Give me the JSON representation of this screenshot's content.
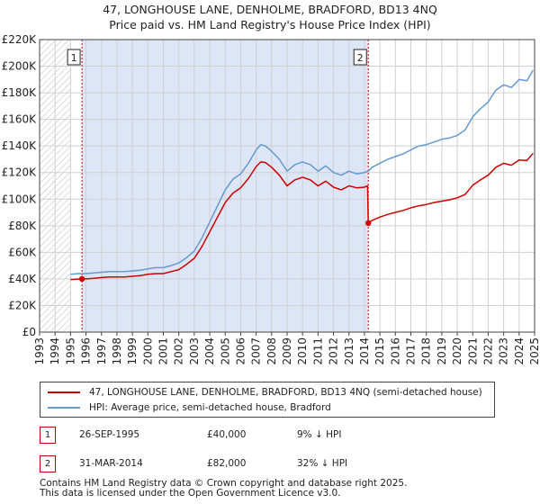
{
  "title_line1": "47, LONGHOUSE LANE, DENHOLME, BRADFORD, BD13 4NQ",
  "title_line2": "Price paid vs. HM Land Registry's House Price Index (HPI)",
  "legend": {
    "property_label": "47, LONGHOUSE LANE, DENHOLME, BRADFORD, BD13 4NQ (semi-detached house)",
    "hpi_label": "HPI: Average price, semi-detached house, Bradford"
  },
  "colors": {
    "property": "#cc0000",
    "hpi": "#6699cc",
    "shade": "#dde6f6",
    "hatch": "#bbbbbb",
    "grid": "#d0d0d0",
    "vline": "#cc0000"
  },
  "sales": [
    {
      "badge": "1",
      "date": "26-SEP-1995",
      "price": "£40,000",
      "hpi_delta": "9% ↓ HPI",
      "year": 1995.74,
      "value": 40000
    },
    {
      "badge": "2",
      "date": "31-MAR-2014",
      "price": "£82,000",
      "hpi_delta": "32% ↓ HPI",
      "year": 2014.25,
      "value": 82000
    }
  ],
  "footer_line1": "Contains HM Land Registry data © Crown copyright and database right 2025.",
  "footer_line2": "This data is licensed under the Open Government Licence v3.0.",
  "chart_data": {
    "type": "line",
    "title": "47, LONGHOUSE LANE, DENHOLME, BRADFORD, BD13 4NQ — Price paid vs. HM Land Registry's House Price Index (HPI)",
    "xlabel": "",
    "ylabel": "",
    "xlim": [
      1993,
      2025
    ],
    "ylim": [
      0,
      220000
    ],
    "y_ticks": [
      0,
      20000,
      40000,
      60000,
      80000,
      100000,
      120000,
      140000,
      160000,
      180000,
      200000,
      220000
    ],
    "y_tick_labels": [
      "£0",
      "£20K",
      "£40K",
      "£60K",
      "£80K",
      "£100K",
      "£120K",
      "£140K",
      "£160K",
      "£180K",
      "£200K",
      "£220K"
    ],
    "x_ticks": [
      1993,
      1994,
      1995,
      1996,
      1997,
      1998,
      1999,
      2000,
      2001,
      2002,
      2003,
      2004,
      2005,
      2006,
      2007,
      2008,
      2009,
      2010,
      2011,
      2012,
      2013,
      2014,
      2015,
      2016,
      2017,
      2018,
      2019,
      2020,
      2021,
      2022,
      2023,
      2024,
      2025
    ],
    "grid": true,
    "hatched_before": 1995.0,
    "shaded_range": [
      1995.74,
      2014.25
    ],
    "series": [
      {
        "name": "HPI: Average price, semi-detached house, Bradford",
        "x": [
          1995.0,
          1995.5,
          1996.0,
          1996.5,
          1997.0,
          1997.5,
          1998.0,
          1998.5,
          1999.0,
          1999.5,
          2000.0,
          2000.5,
          2001.0,
          2001.5,
          2002.0,
          2002.5,
          2003.0,
          2003.5,
          2004.0,
          2004.5,
          2005.0,
          2005.5,
          2006.0,
          2006.5,
          2007.0,
          2007.3,
          2007.6,
          2008.0,
          2008.5,
          2009.0,
          2009.5,
          2010.0,
          2010.5,
          2011.0,
          2011.5,
          2012.0,
          2012.5,
          2013.0,
          2013.5,
          2014.0,
          2014.25,
          2014.5,
          2015.0,
          2015.5,
          2016.0,
          2016.5,
          2017.0,
          2017.5,
          2018.0,
          2018.5,
          2019.0,
          2019.5,
          2020.0,
          2020.5,
          2021.0,
          2021.5,
          2022.0,
          2022.5,
          2023.0,
          2023.5,
          2024.0,
          2024.5,
          2024.9
        ],
        "values": [
          43500,
          44000,
          44000,
          44500,
          45000,
          45500,
          45500,
          45500,
          46000,
          46500,
          47500,
          48500,
          48500,
          50000,
          52000,
          56000,
          61000,
          71000,
          83000,
          95000,
          107000,
          115000,
          119000,
          127000,
          137000,
          141000,
          140000,
          136000,
          130000,
          121000,
          126000,
          128000,
          126000,
          121000,
          125000,
          120000,
          118000,
          121000,
          119000,
          120000,
          121000,
          124000,
          127000,
          130000,
          132000,
          134000,
          137000,
          140000,
          141000,
          143000,
          145000,
          146000,
          148000,
          152000,
          162000,
          168000,
          173000,
          182000,
          186000,
          184000,
          190000,
          189000,
          197000
        ]
      },
      {
        "name": "47, LONGHOUSE LANE, DENHOLME, BRADFORD, BD13 4NQ (semi-detached house)",
        "x": [
          1995.0,
          1995.74,
          1996.0,
          1996.5,
          1997.0,
          1997.5,
          1998.0,
          1998.5,
          1999.0,
          1999.5,
          2000.0,
          2000.5,
          2001.0,
          2001.5,
          2002.0,
          2002.5,
          2003.0,
          2003.5,
          2004.0,
          2004.5,
          2005.0,
          2005.5,
          2006.0,
          2006.5,
          2007.0,
          2007.3,
          2007.6,
          2008.0,
          2008.5,
          2009.0,
          2009.5,
          2010.0,
          2010.5,
          2011.0,
          2011.5,
          2012.0,
          2012.5,
          2013.0,
          2013.5,
          2014.0,
          2014.2,
          2014.25,
          2014.5,
          2015.0,
          2015.5,
          2016.0,
          2016.5,
          2017.0,
          2017.5,
          2018.0,
          2018.5,
          2019.0,
          2019.5,
          2020.0,
          2020.5,
          2021.0,
          2021.5,
          2022.0,
          2022.5,
          2023.0,
          2023.5,
          2024.0,
          2024.5,
          2024.9
        ],
        "values": [
          39500,
          40000,
          40000,
          40500,
          41000,
          41500,
          41500,
          41500,
          42000,
          42500,
          43500,
          44000,
          44000,
          45500,
          47000,
          51000,
          55500,
          64500,
          75500,
          86500,
          97500,
          104500,
          108500,
          115500,
          124500,
          128000,
          127500,
          124000,
          118000,
          110000,
          114500,
          116500,
          114500,
          110000,
          113500,
          109000,
          107000,
          110000,
          108500,
          109000,
          110000,
          82000,
          84000,
          86500,
          88500,
          90000,
          91500,
          93500,
          95000,
          96000,
          97500,
          98500,
          99500,
          101000,
          103500,
          110500,
          114500,
          118000,
          124000,
          127000,
          125500,
          129500,
          129000,
          134500
        ]
      }
    ],
    "annotations": [
      {
        "label": "1",
        "x": 1995.74,
        "y": 40000
      },
      {
        "label": "2",
        "x": 2014.25,
        "y": 82000
      }
    ]
  }
}
